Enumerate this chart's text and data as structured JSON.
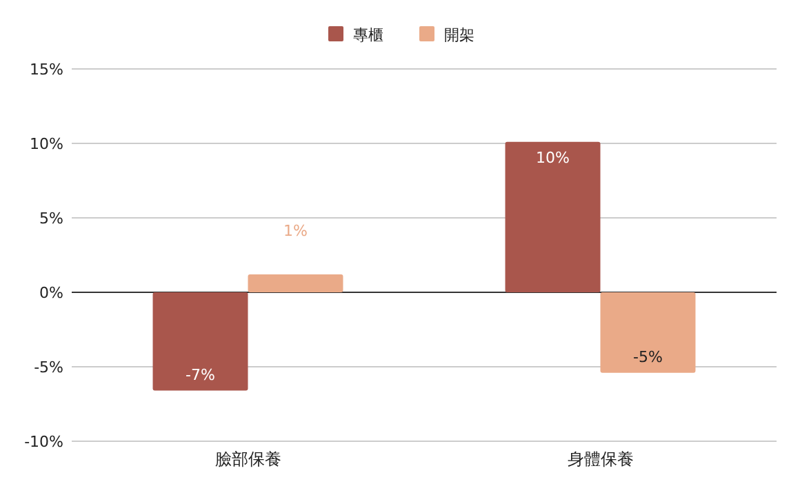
{
  "chart_data": {
    "type": "bar",
    "categories": [
      "臉部保養",
      "身體保養"
    ],
    "series": [
      {
        "name": "專櫃",
        "color": "#a9564c",
        "values": [
          -6.6,
          10.1
        ],
        "value_labels": [
          "-7%",
          "10%"
        ]
      },
      {
        "name": "開架",
        "color": "#eaaa88",
        "values": [
          1.2,
          -5.4
        ],
        "value_labels": [
          "1%",
          "-5%"
        ]
      }
    ],
    "ylim": [
      -10,
      15
    ],
    "yticks": [
      {
        "value": -10,
        "label": "-10%"
      },
      {
        "value": -5,
        "label": "-5%"
      },
      {
        "value": 0,
        "label": "0%"
      },
      {
        "value": 5,
        "label": "5%"
      },
      {
        "value": 10,
        "label": "10%"
      },
      {
        "value": 15,
        "label": "15%"
      }
    ],
    "grid": true,
    "legend": "top"
  }
}
